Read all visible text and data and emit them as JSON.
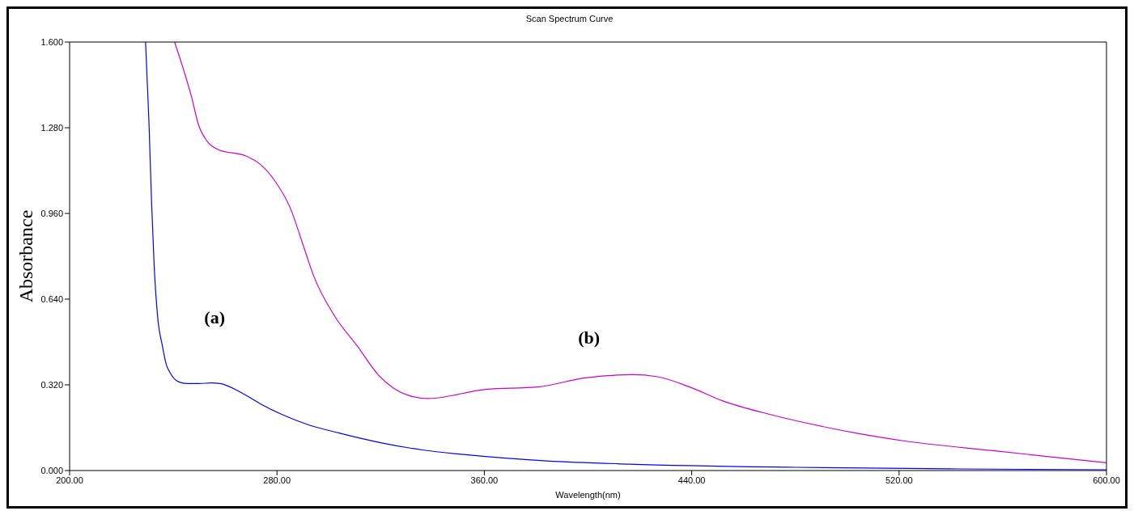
{
  "chart_data": {
    "type": "line",
    "title": "Scan Spectrum Curve",
    "xlabel": "Wavelength(nm)",
    "ylabel": "Absorbance",
    "xlim": [
      200,
      600
    ],
    "xticks": [
      {
        "value": 200,
        "label": "200.00"
      },
      {
        "value": 280,
        "label": "280.00"
      },
      {
        "value": 360,
        "label": "360.00"
      },
      {
        "value": 440,
        "label": "440.00"
      },
      {
        "value": 520,
        "label": "520.00"
      },
      {
        "value": 600,
        "label": "600.00"
      }
    ],
    "ylim": [
      0,
      1.6
    ],
    "yticks": [
      {
        "value": 0,
        "label": "0.000"
      },
      {
        "value": 0.32,
        "label": "0.320"
      },
      {
        "value": 0.64,
        "label": "0.640"
      },
      {
        "value": 0.96,
        "label": "0.960"
      },
      {
        "value": 1.28,
        "label": "1.280"
      },
      {
        "value": 1.6,
        "label": "1.600"
      }
    ],
    "grid": false,
    "legend": false,
    "marker": "none",
    "line_style": "solid",
    "series": [
      {
        "color": "#0000ff",
        "x": [
          229.3,
          230.6,
          231.6,
          232.6,
          234.1,
          235.7,
          237.3,
          238.9,
          242.1,
          245.3,
          250,
          254.7,
          258,
          266,
          274,
          282,
          291.5,
          304,
          320,
          336,
          352,
          384,
          416,
          480,
          543,
          600
        ],
        "values": [
          1.6,
          1.305,
          1.007,
          0.769,
          0.56,
          0.47,
          0.396,
          0.363,
          0.331,
          0.325,
          0.325,
          0.327,
          0.325,
          0.292,
          0.247,
          0.209,
          0.173,
          0.14,
          0.104,
          0.077,
          0.06,
          0.036,
          0.024,
          0.012,
          0.006,
          0.003
        ]
      },
      {
        "color": "#cc00cc",
        "x": [
          240.5,
          247.2,
          249.7,
          253.1,
          257.7,
          267.9,
          273.6,
          279.3,
          285,
          290.7,
          294.1,
          302.1,
          311.2,
          319.2,
          324.9,
          330.6,
          338.5,
          360.5,
          380.6,
          398.9,
          417.2,
          426.4,
          439.2,
          452,
          470.4,
          494.2,
          503.3,
          521.7,
          558.4,
          600
        ],
        "values": [
          1.6,
          1.389,
          1.292,
          1.229,
          1.197,
          1.175,
          1.143,
          1.08,
          0.983,
          0.824,
          0.728,
          0.579,
          0.462,
          0.356,
          0.308,
          0.281,
          0.269,
          0.303,
          0.312,
          0.346,
          0.358,
          0.351,
          0.312,
          0.26,
          0.209,
          0.157,
          0.14,
          0.111,
          0.072,
          0.029
        ]
      }
    ],
    "annotations": [
      "(a)",
      "(b)"
    ]
  }
}
